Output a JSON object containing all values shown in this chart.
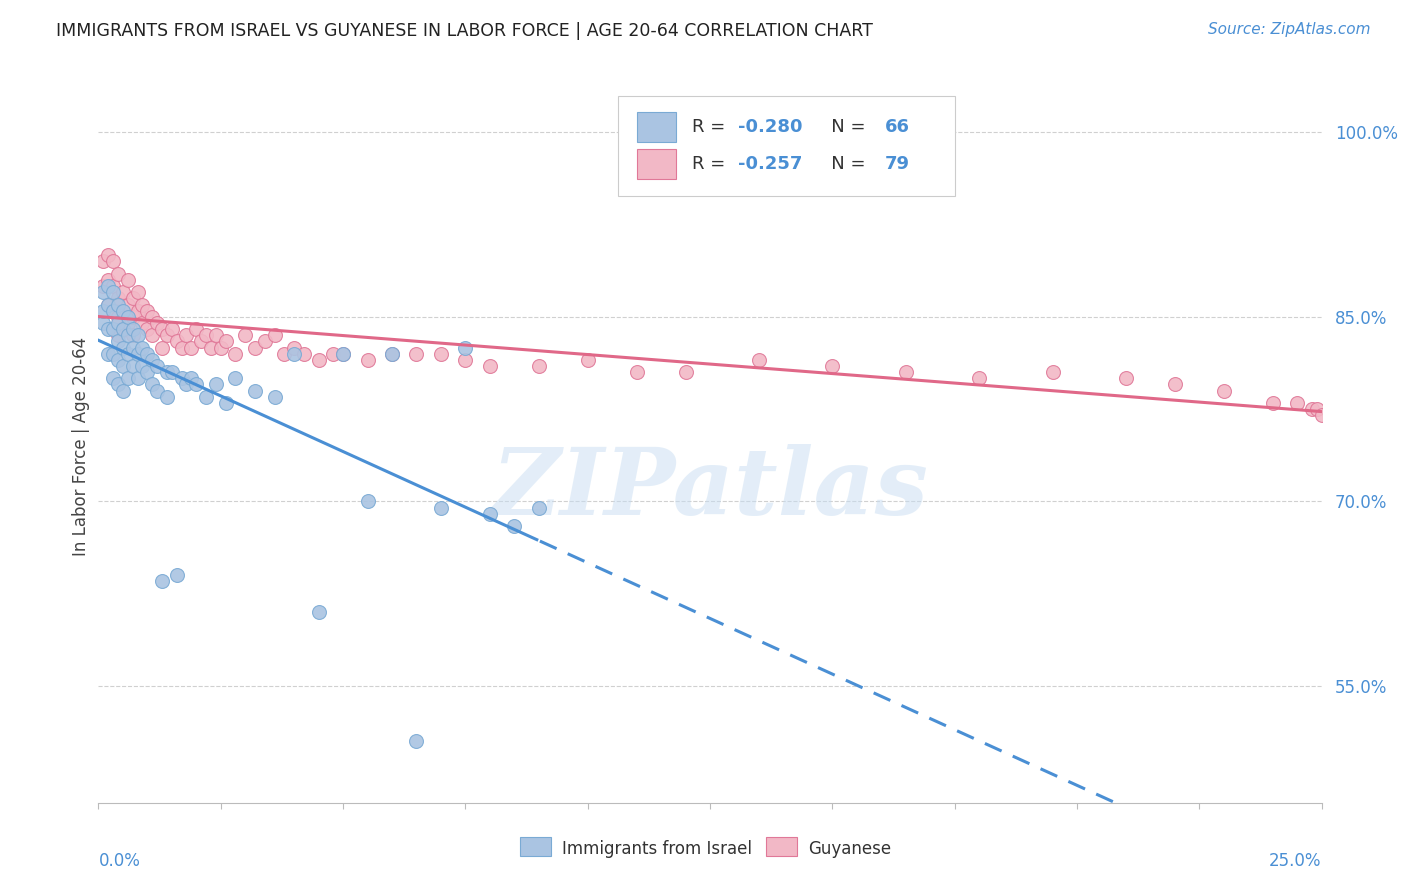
{
  "title": "IMMIGRANTS FROM ISRAEL VS GUYANESE IN LABOR FORCE | AGE 20-64 CORRELATION CHART",
  "source": "Source: ZipAtlas.com",
  "ylabel": "In Labor Force | Age 20-64",
  "xmin": 0.0,
  "xmax": 0.25,
  "ymin": 0.455,
  "ymax": 1.035,
  "series1_name": "Immigrants from Israel",
  "series1_R": -0.28,
  "series1_N": 66,
  "series1_color": "#aac4e2",
  "series1_edge": "#7aaad4",
  "series1_trend_color": "#4a8fd4",
  "series2_name": "Guyanese",
  "series2_R": -0.257,
  "series2_N": 79,
  "series2_color": "#f2b8c6",
  "series2_edge": "#e07898",
  "series2_trend_color": "#e06888",
  "watermark": "ZIPatlas",
  "grid_color": "#d0d0d0",
  "axis_color": "#4a8fd4",
  "israel_x": [
    0.001,
    0.001,
    0.001,
    0.002,
    0.002,
    0.002,
    0.002,
    0.003,
    0.003,
    0.003,
    0.003,
    0.003,
    0.004,
    0.004,
    0.004,
    0.004,
    0.004,
    0.005,
    0.005,
    0.005,
    0.005,
    0.005,
    0.006,
    0.006,
    0.006,
    0.006,
    0.007,
    0.007,
    0.007,
    0.008,
    0.008,
    0.008,
    0.009,
    0.009,
    0.01,
    0.01,
    0.011,
    0.011,
    0.012,
    0.012,
    0.013,
    0.014,
    0.014,
    0.015,
    0.016,
    0.017,
    0.018,
    0.019,
    0.02,
    0.022,
    0.024,
    0.026,
    0.028,
    0.032,
    0.036,
    0.04,
    0.045,
    0.05,
    0.055,
    0.06,
    0.065,
    0.07,
    0.075,
    0.08,
    0.085,
    0.09
  ],
  "israel_y": [
    0.845,
    0.87,
    0.855,
    0.875,
    0.86,
    0.84,
    0.82,
    0.87,
    0.855,
    0.84,
    0.82,
    0.8,
    0.86,
    0.845,
    0.83,
    0.815,
    0.795,
    0.855,
    0.84,
    0.825,
    0.81,
    0.79,
    0.85,
    0.835,
    0.82,
    0.8,
    0.84,
    0.825,
    0.81,
    0.835,
    0.82,
    0.8,
    0.825,
    0.81,
    0.82,
    0.805,
    0.815,
    0.795,
    0.81,
    0.79,
    0.635,
    0.805,
    0.785,
    0.805,
    0.64,
    0.8,
    0.795,
    0.8,
    0.795,
    0.785,
    0.795,
    0.78,
    0.8,
    0.79,
    0.785,
    0.82,
    0.61,
    0.82,
    0.7,
    0.82,
    0.505,
    0.695,
    0.825,
    0.69,
    0.68,
    0.695
  ],
  "guyanese_x": [
    0.001,
    0.001,
    0.002,
    0.002,
    0.002,
    0.003,
    0.003,
    0.003,
    0.004,
    0.004,
    0.004,
    0.004,
    0.005,
    0.005,
    0.005,
    0.006,
    0.006,
    0.006,
    0.007,
    0.007,
    0.007,
    0.008,
    0.008,
    0.009,
    0.009,
    0.01,
    0.01,
    0.011,
    0.011,
    0.012,
    0.013,
    0.013,
    0.014,
    0.015,
    0.016,
    0.017,
    0.018,
    0.019,
    0.02,
    0.021,
    0.022,
    0.023,
    0.024,
    0.025,
    0.026,
    0.028,
    0.03,
    0.032,
    0.034,
    0.036,
    0.038,
    0.04,
    0.042,
    0.045,
    0.048,
    0.05,
    0.055,
    0.06,
    0.065,
    0.07,
    0.075,
    0.08,
    0.09,
    0.1,
    0.11,
    0.12,
    0.135,
    0.15,
    0.165,
    0.18,
    0.195,
    0.21,
    0.22,
    0.23,
    0.24,
    0.245,
    0.248,
    0.249,
    0.25
  ],
  "guyanese_y": [
    0.875,
    0.895,
    0.9,
    0.88,
    0.86,
    0.895,
    0.875,
    0.855,
    0.885,
    0.865,
    0.85,
    0.835,
    0.87,
    0.855,
    0.84,
    0.88,
    0.86,
    0.845,
    0.865,
    0.85,
    0.835,
    0.87,
    0.855,
    0.86,
    0.845,
    0.855,
    0.84,
    0.85,
    0.835,
    0.845,
    0.84,
    0.825,
    0.835,
    0.84,
    0.83,
    0.825,
    0.835,
    0.825,
    0.84,
    0.83,
    0.835,
    0.825,
    0.835,
    0.825,
    0.83,
    0.82,
    0.835,
    0.825,
    0.83,
    0.835,
    0.82,
    0.825,
    0.82,
    0.815,
    0.82,
    0.82,
    0.815,
    0.82,
    0.82,
    0.82,
    0.815,
    0.81,
    0.81,
    0.815,
    0.805,
    0.805,
    0.815,
    0.81,
    0.805,
    0.8,
    0.805,
    0.8,
    0.795,
    0.79,
    0.78,
    0.78,
    0.775,
    0.775,
    0.77
  ]
}
